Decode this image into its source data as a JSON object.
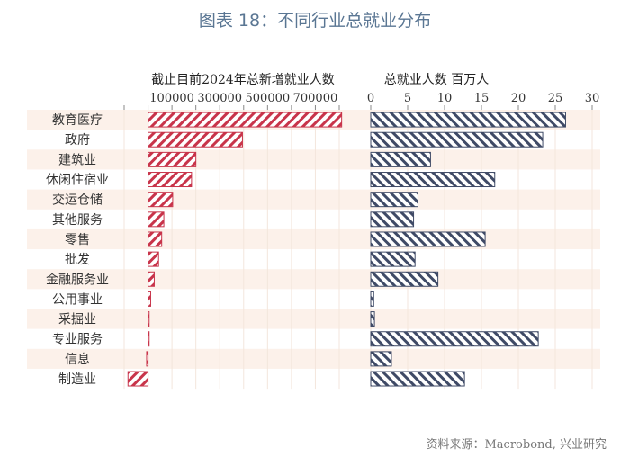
{
  "title": "图表 18：不同行业总就业分布",
  "source": "资料来源：Macrobond, 兴业研究",
  "colors": {
    "left_bar": "#c8344a",
    "right_bar": "#3f4a66",
    "band": "#fcf1ea",
    "title": "#5a7693"
  },
  "chart_data": [
    {
      "type": "bar",
      "orientation": "horizontal",
      "title": "截止目前2024年总新增就业人数",
      "categories": [
        "教育医疗",
        "政府",
        "建筑业",
        "休闲住宿业",
        "交运仓储",
        "其他服务",
        "零售",
        "批发",
        "金融服务业",
        "公用事业",
        "采掘业",
        "专业服务",
        "信息",
        "制造业"
      ],
      "values": [
        810000,
        395000,
        200000,
        182000,
        103000,
        66000,
        57000,
        44000,
        26000,
        11000,
        4000,
        2000,
        -6000,
        -84000
      ],
      "xlim": [
        -100000,
        800000
      ],
      "tick_labels": [
        "100000",
        "300000",
        "500000",
        "700000"
      ],
      "tick_values": [
        100000,
        300000,
        500000,
        700000
      ]
    },
    {
      "type": "bar",
      "orientation": "horizontal",
      "title": "总就业人数  百万人",
      "categories": [
        "教育医疗",
        "政府",
        "建筑业",
        "休闲住宿业",
        "交运仓储",
        "其他服务",
        "零售",
        "批发",
        "金融服务业",
        "公用事业",
        "采掘业",
        "专业服务",
        "信息",
        "制造业"
      ],
      "values": [
        26.4,
        23.3,
        8.1,
        16.8,
        6.4,
        5.8,
        15.5,
        6.0,
        9.1,
        0.4,
        0.5,
        22.7,
        2.8,
        12.7
      ],
      "xlim": [
        0,
        30
      ],
      "tick_labels": [
        "0",
        "5",
        "10",
        "15",
        "20",
        "25",
        "30"
      ],
      "tick_values": [
        0,
        5,
        10,
        15,
        20,
        25,
        30
      ]
    }
  ]
}
